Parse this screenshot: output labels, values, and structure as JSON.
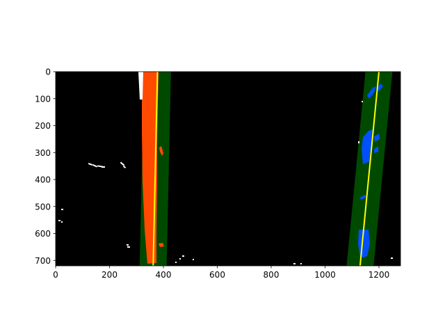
{
  "chart_data": {
    "type": "image",
    "title": "",
    "xlabel": "",
    "ylabel": "",
    "xlim": [
      0,
      1280
    ],
    "ylim": [
      720,
      0
    ],
    "x_ticks": [
      0,
      200,
      400,
      600,
      800,
      1000,
      1200
    ],
    "y_ticks": [
      0,
      100,
      200,
      300,
      400,
      500,
      600,
      700
    ],
    "colors": {
      "background": "#000000",
      "lane_window": "#004a00",
      "left_lane_pixels": "#ff4a00",
      "right_lane_pixels": "#0050ff",
      "fit_line": "#ffff00",
      "noise_pixels": "#ffffff"
    },
    "lanes": [
      {
        "name": "left",
        "fit_x_at_top": 378,
        "fit_x_at_bottom": 362,
        "window_half_width": 50,
        "pixel_color": "left_lane_pixels"
      },
      {
        "name": "right",
        "fit_x_at_top": 1200,
        "fit_x_at_bottom": 1130,
        "window_half_width": 50,
        "pixel_color": "right_lane_pixels"
      }
    ]
  }
}
